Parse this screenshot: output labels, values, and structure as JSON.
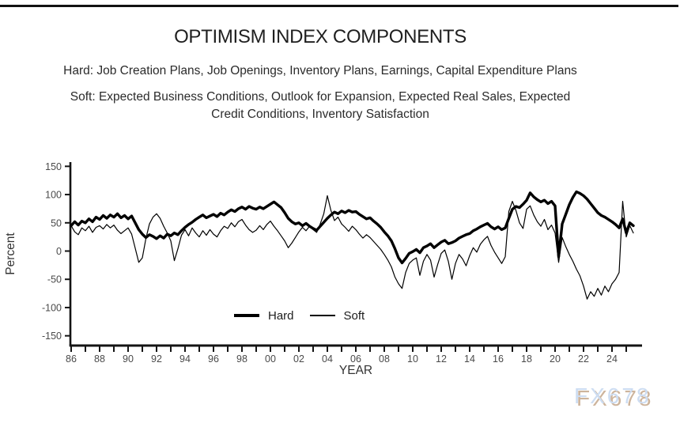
{
  "page": {
    "title": "OPTIMISM INDEX COMPONENTS",
    "subtitle_hard": "Hard: Job Creation Plans, Job Openings, Inventory Plans, Earnings, Capital Expenditure Plans",
    "subtitle_soft_lines": [
      "Soft: Expected Business Conditions, Outlook for Expansion, Expected Real Sales, Expected",
      "Credit Conditions, Inventory Satisfaction"
    ],
    "watermark": "FX678"
  },
  "chart_data": {
    "type": "line",
    "title": "OPTIMISM INDEX COMPONENTS",
    "xlabel": "YEAR",
    "ylabel": "Percent",
    "xlim": [
      1985.95,
      2026.1
    ],
    "ylim": [
      -150,
      150
    ],
    "grid": false,
    "legend_position": "bottom-center-inside",
    "y_ticks": [
      150,
      100,
      50,
      0,
      -50,
      -100,
      -150
    ],
    "x_ticks": [
      [
        1986,
        "86"
      ],
      [
        1988,
        "88"
      ],
      [
        1990,
        "90"
      ],
      [
        1992,
        "92"
      ],
      [
        1994,
        "94"
      ],
      [
        1996,
        "96"
      ],
      [
        1998,
        "98"
      ],
      [
        2000,
        "00"
      ],
      [
        2002,
        "02"
      ],
      [
        2004,
        "04"
      ],
      [
        2006,
        "06"
      ],
      [
        2008,
        "08"
      ],
      [
        2010,
        "10"
      ],
      [
        2012,
        "12"
      ],
      [
        2014,
        "14"
      ],
      [
        2016,
        "16"
      ],
      [
        2018,
        "18"
      ],
      [
        2020,
        "20"
      ],
      [
        2022,
        "22"
      ],
      [
        2024,
        "24"
      ]
    ],
    "x_minor_tick_range": [
      1986,
      2025
    ],
    "x_start": 1986.0,
    "x_step": 0.25,
    "series": [
      {
        "name": "Hard",
        "line": "thick",
        "values": [
          45,
          52,
          46,
          53,
          50,
          57,
          52,
          60,
          56,
          63,
          58,
          64,
          60,
          66,
          59,
          63,
          57,
          62,
          50,
          38,
          30,
          24,
          29,
          26,
          22,
          27,
          23,
          30,
          27,
          32,
          29,
          36,
          42,
          47,
          51,
          56,
          60,
          64,
          59,
          62,
          65,
          61,
          67,
          64,
          69,
          73,
          70,
          75,
          78,
          74,
          79,
          76,
          74,
          78,
          75,
          79,
          83,
          87,
          82,
          77,
          68,
          58,
          52,
          48,
          50,
          45,
          49,
          44,
          40,
          37,
          44,
          51,
          58,
          64,
          69,
          66,
          71,
          68,
          72,
          69,
          70,
          65,
          61,
          57,
          59,
          53,
          48,
          42,
          34,
          27,
          18,
          4,
          -12,
          -21,
          -13,
          -4,
          -1,
          3,
          -3,
          6,
          9,
          13,
          6,
          11,
          16,
          19,
          13,
          15,
          18,
          23,
          26,
          29,
          31,
          36,
          39,
          43,
          46,
          49,
          43,
          39,
          43,
          38,
          41,
          58,
          74,
          79,
          77,
          83,
          90,
          103,
          96,
          91,
          87,
          90,
          84,
          88,
          80,
          -10,
          48,
          65,
          82,
          95,
          105,
          102,
          98,
          92,
          84,
          76,
          68,
          63,
          60,
          56,
          52,
          47,
          41,
          57,
          32,
          50,
          45
        ]
      },
      {
        "name": "Soft",
        "line": "thin",
        "values": [
          45,
          34,
          29,
          41,
          36,
          44,
          33,
          42,
          45,
          39,
          47,
          41,
          46,
          37,
          31,
          36,
          41,
          30,
          5,
          -20,
          -12,
          22,
          48,
          60,
          66,
          58,
          44,
          32,
          18,
          -17,
          4,
          28,
          38,
          27,
          41,
          32,
          25,
          36,
          28,
          38,
          30,
          25,
          36,
          44,
          40,
          50,
          43,
          52,
          56,
          46,
          38,
          33,
          37,
          45,
          38,
          47,
          53,
          44,
          36,
          27,
          18,
          6,
          14,
          24,
          34,
          42,
          36,
          44,
          38,
          33,
          48,
          66,
          98,
          72,
          54,
          60,
          48,
          42,
          35,
          44,
          38,
          30,
          23,
          29,
          24,
          17,
          10,
          3,
          -6,
          -16,
          -28,
          -46,
          -58,
          -66,
          -38,
          -22,
          -16,
          -12,
          -43,
          -18,
          -6,
          -16,
          -46,
          -24,
          -4,
          2,
          -18,
          -50,
          -22,
          -6,
          -14,
          -26,
          -8,
          6,
          -2,
          12,
          20,
          26,
          10,
          -2,
          -12,
          -22,
          -10,
          70,
          88,
          72,
          50,
          40,
          74,
          80,
          64,
          52,
          44,
          56,
          38,
          46,
          32,
          -20,
          24,
          8,
          -6,
          -18,
          -32,
          -44,
          -62,
          -85,
          -72,
          -80,
          -66,
          -78,
          -62,
          -72,
          -58,
          -50,
          -38,
          88,
          25,
          45,
          32
        ]
      }
    ]
  }
}
